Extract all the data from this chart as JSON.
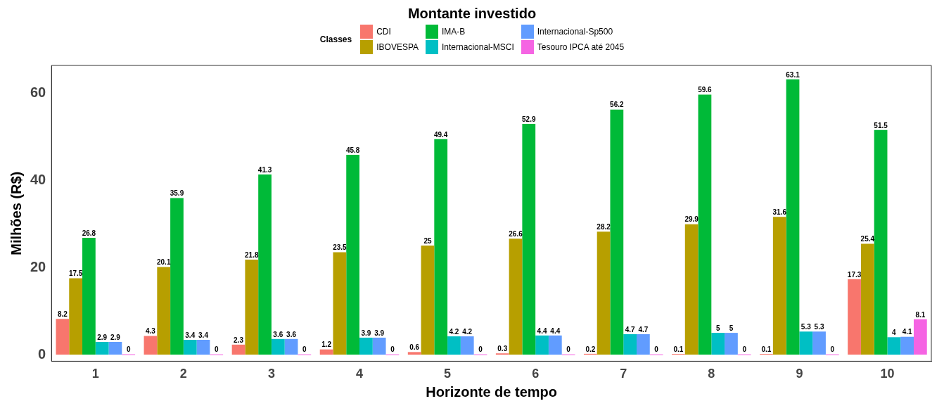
{
  "chart_data": {
    "type": "bar",
    "title": "Montante investido",
    "legend_title": "Classes",
    "xlabel": "Horizonte de tempo",
    "ylabel": "Milhões (R$)",
    "categories": [
      "1",
      "2",
      "3",
      "4",
      "5",
      "6",
      "7",
      "8",
      "9",
      "10"
    ],
    "series": [
      {
        "name": "CDI",
        "color": "#f8766d",
        "values": [
          8.2,
          4.3,
          2.3,
          1.2,
          0.6,
          0.3,
          0.2,
          0.1,
          0.1,
          17.3
        ]
      },
      {
        "name": "IBOVESPA",
        "color": "#b79f00",
        "values": [
          17.5,
          20.1,
          21.8,
          23.5,
          25,
          26.6,
          28.2,
          29.9,
          31.6,
          25.4
        ]
      },
      {
        "name": "IMA-B",
        "color": "#00ba38",
        "values": [
          26.8,
          35.9,
          41.3,
          45.8,
          49.4,
          52.9,
          56.2,
          59.6,
          63.1,
          51.5
        ]
      },
      {
        "name": "Internacional-MSCI",
        "color": "#00bfc4",
        "values": [
          2.9,
          3.4,
          3.6,
          3.9,
          4.2,
          4.4,
          4.7,
          5,
          5.3,
          4
        ]
      },
      {
        "name": "Internacional-Sp500",
        "color": "#619cff",
        "values": [
          2.9,
          3.4,
          3.6,
          3.9,
          4.2,
          4.4,
          4.7,
          5,
          5.3,
          4.1
        ]
      },
      {
        "name": "Tesouro IPCA até 2045",
        "color": "#f564e3",
        "values": [
          0,
          0,
          0,
          0,
          0,
          0,
          0,
          0,
          0,
          8.1
        ]
      }
    ],
    "ylim": [
      -1.5,
      66.3
    ],
    "yticks": [
      0,
      20,
      40,
      60
    ],
    "grid": false,
    "legend": "top",
    "data_labels": true
  }
}
